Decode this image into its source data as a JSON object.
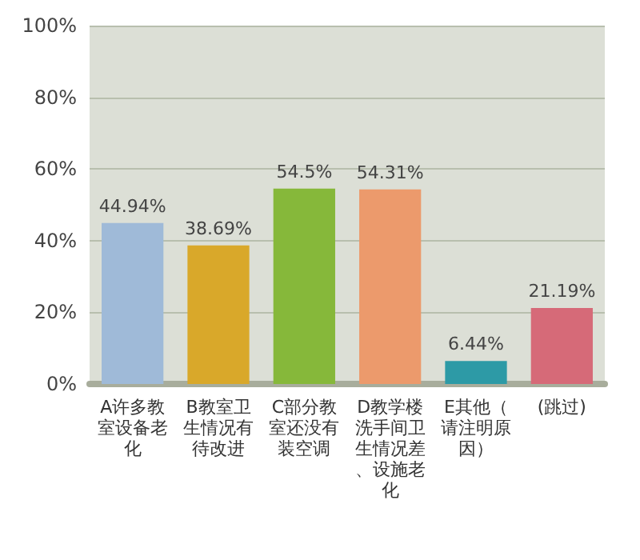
{
  "chart_data": {
    "type": "bar",
    "categories": [
      "A许多教室设备老化",
      "B教室卫生情况有待改进",
      "C部分教室还没有装空调",
      "D教学楼洗手间卫生情况差、设施老化",
      "E其他（请注明原因）",
      "(跳过)"
    ],
    "values": [
      44.94,
      38.69,
      54.5,
      54.31,
      6.44,
      21.19
    ],
    "colors": [
      "#9fbad8",
      "#d9a82a",
      "#86b83a",
      "#ec9a6c",
      "#2d9aa6",
      "#d66a78"
    ],
    "value_labels": [
      "44.94%",
      "38.69%",
      "54.5%",
      "54.31%",
      "6.44%",
      "21.19%"
    ],
    "ylim": [
      0,
      100
    ],
    "yticks": [
      {
        "value": 0,
        "label": "0%"
      },
      {
        "value": 20,
        "label": "20%"
      },
      {
        "value": 40,
        "label": "40%"
      },
      {
        "value": 60,
        "label": "60%"
      },
      {
        "value": 80,
        "label": "80%"
      },
      {
        "value": 100,
        "label": "100%"
      }
    ],
    "grid": "y"
  }
}
